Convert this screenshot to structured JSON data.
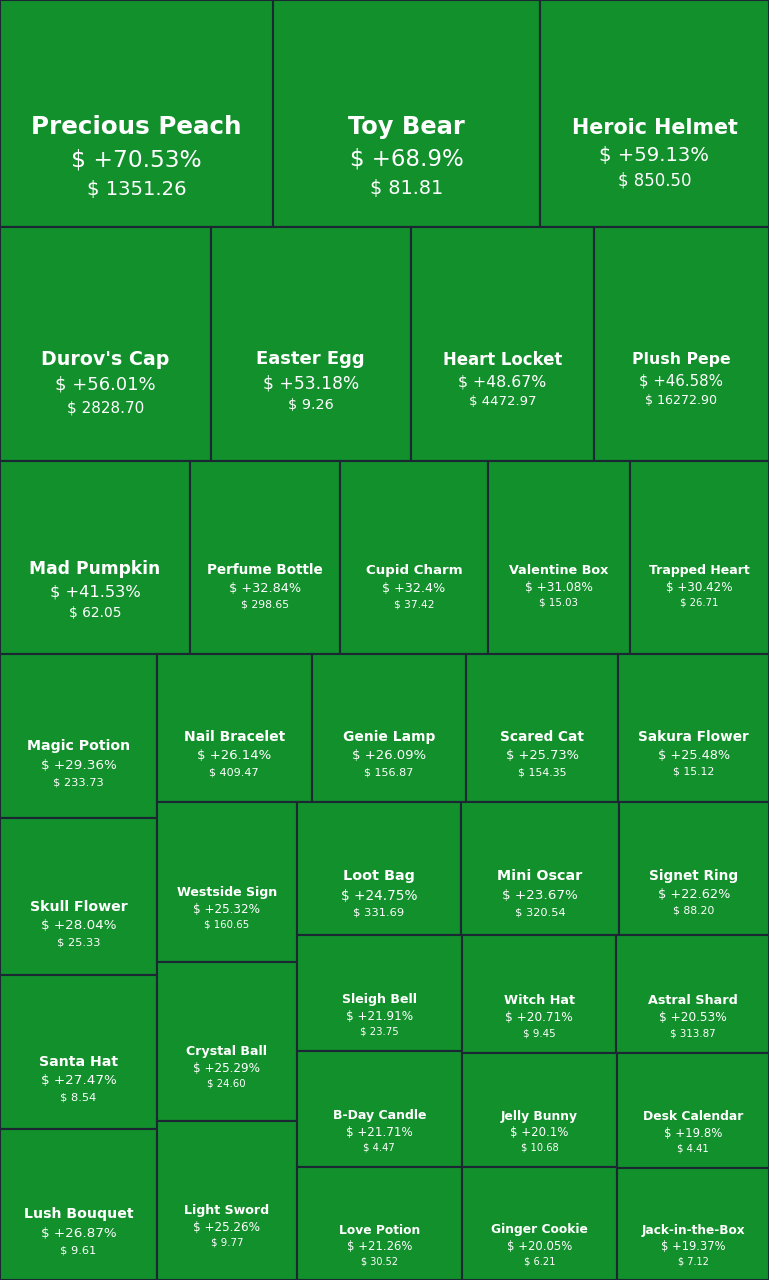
{
  "chart_data": {
    "type": "treemap",
    "color": "#12902c",
    "categories": [
      "Precious Peach",
      "Toy Bear",
      "Heroic Helmet",
      "Durov's Cap",
      "Easter Egg",
      "Heart Locket",
      "Plush Pepe",
      "Mad Pumpkin",
      "Perfume Bottle",
      "Cupid Charm",
      "Valentine Box",
      "Trapped Heart",
      "Magic Potion",
      "Skull Flower",
      "Santa Hat",
      "Lush Bouquet",
      "Nail Bracelet",
      "Genie Lamp",
      "Scared Cat",
      "Sakura Flower",
      "Westside Sign",
      "Crystal Ball",
      "Light Sword",
      "Loot Bag",
      "Mini Oscar",
      "Signet Ring",
      "Sleigh Bell",
      "B-Day Candle",
      "Love Potion",
      "Witch Hat",
      "Astral Shard",
      "Jelly Bunny",
      "Ginger Cookie",
      "Desk Calendar",
      "Jack-in-the-Box"
    ],
    "values": [
      70.53,
      68.9,
      59.13,
      56.01,
      53.18,
      48.67,
      46.58,
      41.53,
      32.84,
      32.4,
      31.08,
      30.42,
      29.36,
      28.04,
      27.47,
      26.87,
      26.14,
      26.09,
      25.73,
      25.48,
      25.32,
      25.29,
      25.26,
      24.75,
      23.67,
      22.62,
      21.91,
      21.71,
      21.26,
      20.71,
      20.53,
      20.1,
      20.05,
      19.8,
      19.37
    ],
    "value_labels": [
      "$ +70.53%",
      "$ +68.9%",
      "$ +59.13%",
      "$ +56.01%",
      "$ +53.18%",
      "$ +48.67%",
      "$ +46.58%",
      "$ +41.53%",
      "$ +32.84%",
      "$ +32.4%",
      "$ +31.08%",
      "$ +30.42%",
      "$ +29.36%",
      "$ +28.04%",
      "$ +27.47%",
      "$ +26.87%",
      "$ +26.14%",
      "$ +26.09%",
      "$ +25.73%",
      "$ +25.48%",
      "$ +25.32%",
      "$ +25.29%",
      "$ +25.26%",
      "$ +24.75%",
      "$ +23.67%",
      "$ +22.62%",
      "$ +21.91%",
      "$ +21.71%",
      "$ +21.26%",
      "$ +20.71%",
      "$ +20.53%",
      "$ +20.1%",
      "$ +20.05%",
      "$ +19.8%",
      "$ +19.37%"
    ],
    "prices": [
      "$ 1351.26",
      "$ 81.81",
      "$ 850.50",
      "$ 2828.70",
      "$ 9.26",
      "$ 4472.97",
      "$ 16272.90",
      "$ 62.05",
      "$ 298.65",
      "$ 37.42",
      "$ 15.03",
      "$ 26.71",
      "$ 233.73",
      "$ 25.33",
      "$ 8.54",
      "$ 9.61",
      "$ 409.47",
      "$ 156.87",
      "$ 154.35",
      "$ 15.12",
      "$ 160.65",
      "$ 24.60",
      "$ 9.77",
      "$ 331.69",
      "$ 320.54",
      "$ 88.20",
      "$ 23.75",
      "$ 4.47",
      "$ 30.52",
      "$ 9.45",
      "$ 313.87",
      "$ 10.68",
      "$ 6.21",
      "$ 4.41",
      "$ 7.12"
    ]
  }
}
